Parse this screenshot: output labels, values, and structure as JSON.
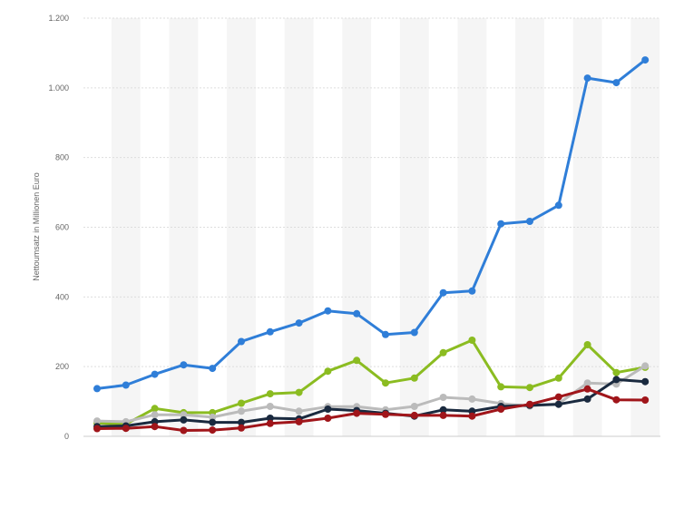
{
  "chart_data": {
    "type": "line",
    "title": "",
    "xlabel": "",
    "ylabel": "Nettoumsatz in Millionen Euro",
    "ylim": [
      0,
      1200
    ],
    "yticks": [
      {
        "value": 0,
        "label": "0"
      },
      {
        "value": 200,
        "label": "200"
      },
      {
        "value": 400,
        "label": "400"
      },
      {
        "value": 600,
        "label": "600"
      },
      {
        "value": 800,
        "label": "800"
      },
      {
        "value": 1000,
        "label": "1.000"
      },
      {
        "value": 1200,
        "label": "1.200"
      }
    ],
    "grid": true,
    "legend": "none",
    "series": [
      {
        "color": "#2f7ed8",
        "values": [
          137,
          147,
          178,
          205,
          195,
          272,
          300,
          325,
          360,
          352,
          292,
          298,
          412,
          417,
          610,
          617,
          663,
          1028,
          1015,
          1080
        ]
      },
      {
        "color": "#8bbc21",
        "values": [
          38,
          35,
          80,
          68,
          68,
          95,
          122,
          126,
          187,
          218,
          153,
          167,
          240,
          276,
          142,
          140,
          167,
          263,
          183,
          198
        ]
      },
      {
        "color": "#bbbbbb",
        "values": [
          44,
          42,
          62,
          62,
          55,
          72,
          86,
          72,
          85,
          85,
          76,
          86,
          112,
          107,
          94,
          87,
          94,
          153,
          150,
          202
        ]
      },
      {
        "color": "#1a2a3f",
        "values": [
          28,
          30,
          42,
          47,
          40,
          40,
          52,
          50,
          78,
          74,
          66,
          58,
          76,
          72,
          86,
          89,
          92,
          107,
          163,
          157
        ]
      },
      {
        "color": "#a0151a",
        "values": [
          22,
          23,
          28,
          17,
          18,
          24,
          37,
          42,
          52,
          66,
          63,
          60,
          60,
          58,
          78,
          92,
          113,
          136,
          105,
          104
        ]
      }
    ]
  }
}
